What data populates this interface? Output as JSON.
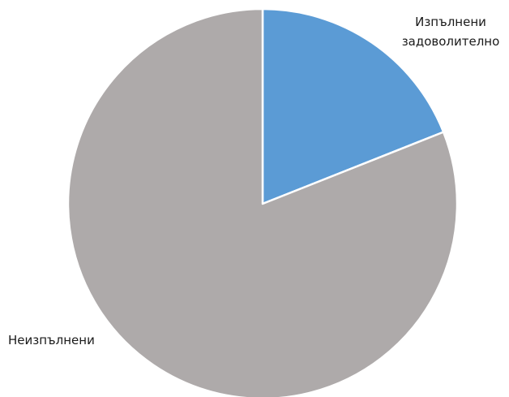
{
  "chart_data": {
    "type": "pie",
    "title": "",
    "slices": [
      {
        "label": [
          "Изпълнени",
          "задоволително"
        ],
        "value": 19,
        "color": "#5b9bd5"
      },
      {
        "label": [
          "Неизпълнени"
        ],
        "value": 81,
        "color": "#aeaaaa"
      }
    ],
    "start_angle_deg": 0,
    "direction": "clockwise",
    "slice_border_color": "#ffffff"
  }
}
